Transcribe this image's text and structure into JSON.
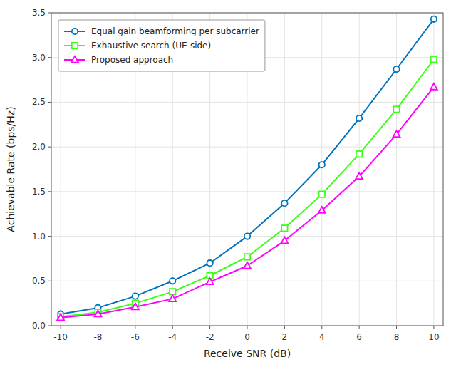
{
  "chart_data": {
    "type": "line",
    "x": [
      -10,
      -8,
      -6,
      -4,
      -2,
      0,
      2,
      4,
      6,
      8,
      10
    ],
    "series": [
      {
        "name": "Equal gain beamforming per subcarrier",
        "color": "#0072BD",
        "marker": "circle",
        "values": [
          0.13,
          0.2,
          0.33,
          0.5,
          0.7,
          1.0,
          1.37,
          1.8,
          2.32,
          2.87,
          3.43
        ]
      },
      {
        "name": "Exhaustive search (UE-side)",
        "color": "#39FF14",
        "marker": "square",
        "values": [
          0.1,
          0.15,
          0.25,
          0.38,
          0.56,
          0.77,
          1.09,
          1.47,
          1.92,
          2.42,
          2.98
        ]
      },
      {
        "name": "Proposed approach",
        "color": "#FF00FF",
        "marker": "triangle",
        "values": [
          0.09,
          0.13,
          0.21,
          0.3,
          0.49,
          0.67,
          0.95,
          1.29,
          1.67,
          2.14,
          2.67
        ]
      }
    ],
    "xlabel": "Receive SNR (dB)",
    "ylabel": "Achievable Rate (bps/Hz)",
    "xlim": [
      -10.5,
      10.5
    ],
    "ylim": [
      0,
      3.5
    ],
    "xticks": [
      -10,
      -8,
      -6,
      -4,
      -2,
      0,
      2,
      4,
      6,
      8,
      10
    ],
    "yticks": [
      {
        "value": 0,
        "label": "0.0"
      },
      0.5,
      {
        "value": 1.0,
        "label": "1.0"
      },
      1.5,
      {
        "value": 2.0,
        "label": "2.0"
      },
      2.5,
      {
        "value": 3.0,
        "label": "3.0"
      },
      3.5
    ],
    "grid": true,
    "legend": "upper left"
  }
}
